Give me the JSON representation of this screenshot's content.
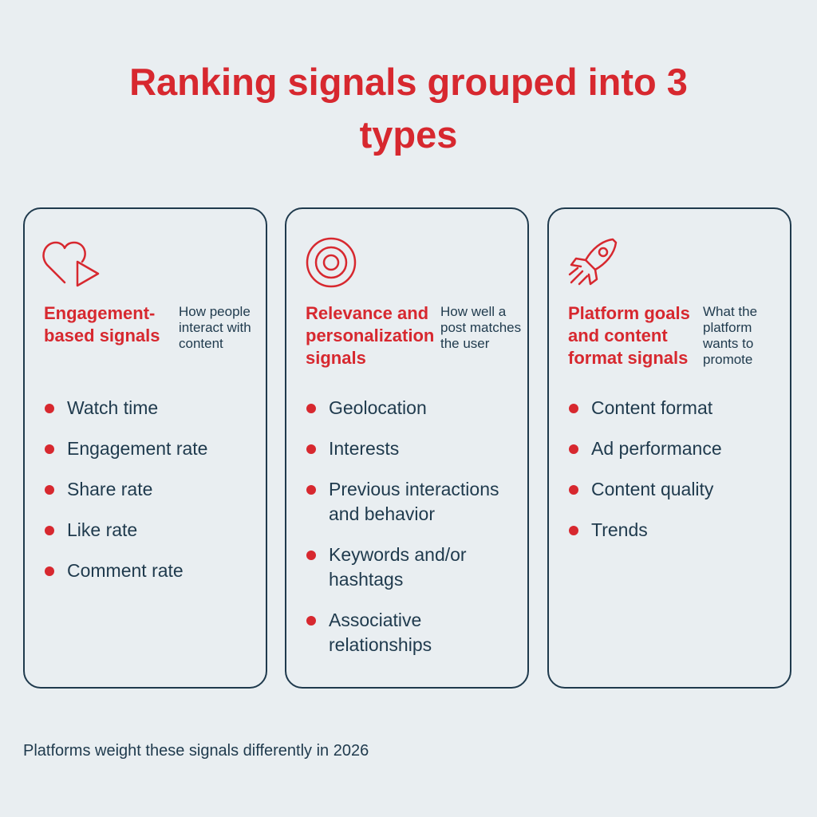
{
  "header": {
    "title": "Ranking signals grouped into 3 types"
  },
  "cards": [
    {
      "heading": "Engagement-based signals",
      "description": "How people interact with content",
      "items": [
        "Watch time",
        "Engagement rate",
        "Share rate",
        "Like rate",
        "Comment rate"
      ]
    },
    {
      "heading": "Relevance and personalization signals",
      "description": "How well a post matches the user",
      "items": [
        "Geolocation",
        "Interests",
        "Previous interactions and behavior",
        "Keywords and/or hashtags",
        "Associative relationships"
      ]
    },
    {
      "heading": "Platform goals and content format signals",
      "description": "What the platform wants to promote",
      "items": [
        "Content format",
        "Ad performance",
        "Content quality",
        "Trends"
      ]
    }
  ],
  "footer": {
    "note": "Platforms weight these signals differently in 2026"
  }
}
